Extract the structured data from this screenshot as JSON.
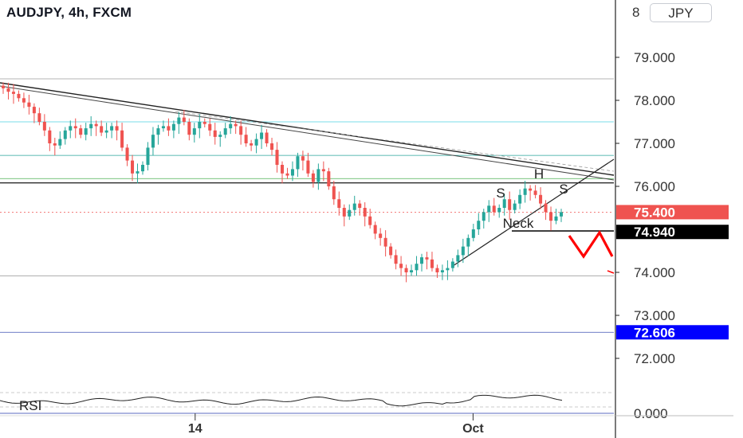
{
  "header": {
    "title": "AUDJPY, 4h, FXCM",
    "currency": "JPY"
  },
  "chart_data": {
    "type": "candlestick",
    "symbol": "AUDJPY",
    "timeframe": "4h",
    "source": "FXCM",
    "currency": "JPY",
    "y_axis": {
      "ticks": [
        {
          "value": 79,
          "label": "79.000"
        },
        {
          "value": 78,
          "label": "78.000"
        },
        {
          "value": 77,
          "label": "77.000"
        },
        {
          "value": 76,
          "label": "76.000"
        },
        {
          "value": 74,
          "label": "74.000"
        },
        {
          "value": 73,
          "label": "73.000"
        },
        {
          "value": 72,
          "label": "72.000"
        }
      ],
      "partial_top_label": "8",
      "range": [
        71.6,
        80.2
      ]
    },
    "x_axis": {
      "labels": [
        {
          "label": "14",
          "index": 0.344
        },
        {
          "label": "Oct",
          "index": 0.842
        }
      ]
    },
    "price_tags": [
      {
        "value": 75.4,
        "label": "75.400",
        "color": "#ef5350"
      },
      {
        "value": 74.94,
        "label": "74.940",
        "color": "#000000"
      },
      {
        "value": 72.606,
        "label": "72.606",
        "color": "#0000ff"
      }
    ],
    "horizontal_levels": [
      {
        "value": 78.5,
        "color": "#9e9e9e"
      },
      {
        "value": 77.5,
        "color": "#4dd0e1"
      },
      {
        "value": 76.72,
        "color": "#26a69a"
      },
      {
        "value": 76.18,
        "color": "#4caf50"
      },
      {
        "value": 76.08,
        "color": "#000000"
      },
      {
        "value": 73.92,
        "color": "#9e9e9e"
      },
      {
        "value": 72.606,
        "color": "#3f51b5"
      }
    ],
    "closes": [
      78.28,
      78.2,
      78.15,
      78.05,
      77.95,
      77.85,
      77.7,
      77.5,
      77.3,
      77.0,
      76.95,
      77.1,
      77.3,
      77.4,
      77.35,
      77.2,
      77.35,
      77.45,
      77.4,
      77.25,
      77.3,
      77.4,
      77.3,
      76.9,
      76.6,
      76.3,
      76.35,
      76.5,
      76.9,
      77.2,
      77.35,
      77.4,
      77.3,
      77.45,
      77.6,
      77.5,
      77.2,
      77.35,
      77.5,
      77.45,
      77.3,
      77.15,
      77.2,
      77.35,
      77.45,
      77.4,
      77.2,
      77.0,
      76.95,
      77.1,
      77.25,
      77.0,
      76.85,
      76.5,
      76.3,
      76.25,
      76.4,
      76.7,
      76.6,
      76.3,
      76.1,
      76.4,
      76.35,
      76.0,
      75.7,
      75.5,
      75.3,
      75.45,
      75.6,
      75.5,
      75.3,
      75.1,
      74.9,
      74.8,
      74.6,
      74.4,
      74.2,
      74.1,
      74.0,
      74.05,
      74.2,
      74.35,
      74.3,
      74.1,
      74.0,
      74.05,
      74.1,
      74.25,
      74.4,
      74.6,
      74.8,
      75.0,
      75.2,
      75.4,
      75.55,
      75.4,
      75.5,
      75.7,
      75.45,
      75.6,
      75.8,
      75.95,
      75.9,
      75.8,
      75.6,
      75.4,
      75.2,
      75.3,
      75.4
    ],
    "annotations": [
      {
        "text": "S",
        "position": "left shoulder"
      },
      {
        "text": "H",
        "position": "head"
      },
      {
        "text": "S",
        "position": "right shoulder"
      },
      {
        "text": "Neck",
        "position": "neckline"
      }
    ],
    "indicator": {
      "name": "RSI",
      "axis_label": "0.000"
    }
  }
}
